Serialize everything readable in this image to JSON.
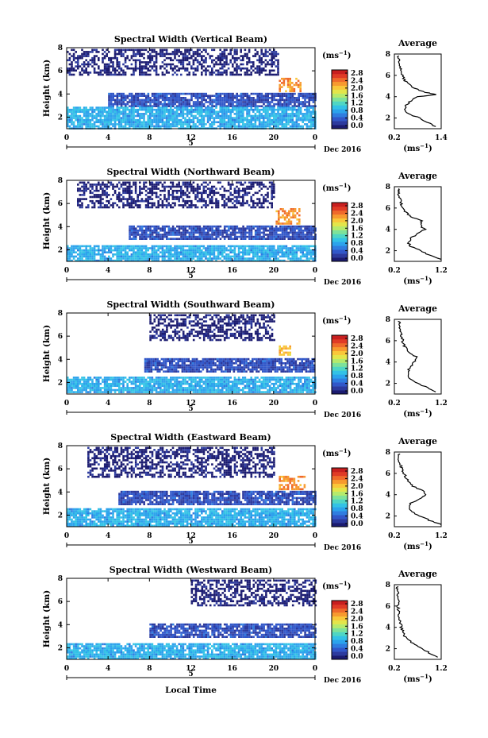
{
  "colormap": [
    "#1b1b70",
    "#2c3a9e",
    "#3157c9",
    "#2f7de0",
    "#2ca3ec",
    "#33c2e6",
    "#4fd6c4",
    "#7ee29a",
    "#b5ea6c",
    "#e3e54a",
    "#f9c73a",
    "#f79a2f",
    "#ef6a2b",
    "#e03b26",
    "#c81f1f"
  ],
  "panels": [
    {
      "title": "Spectral Width (Vertical Beam)",
      "profile_xticks": [
        "0.2",
        "1.4"
      ],
      "profile_xrange": [
        0.2,
        1.4
      ],
      "cbar_ticks": [
        "2.8",
        "2.4",
        "2.0",
        "1.6",
        "1.2",
        "0.8",
        "0.4",
        "0.0"
      ]
    },
    {
      "title": "Spectral Width (Northward Beam)",
      "profile_xticks": [
        "0.2",
        "1.2"
      ],
      "profile_xrange": [
        0.2,
        1.2
      ],
      "cbar_ticks": [
        "2.8",
        "2.4",
        "2.0",
        "1.6",
        "1.2",
        "0.8",
        "0.4",
        "0.0"
      ]
    },
    {
      "title": "Spectral Width (Southward Beam)",
      "profile_xticks": [
        "0.2",
        "1.2"
      ],
      "profile_xrange": [
        0.2,
        1.2
      ],
      "cbar_ticks": [
        "2.8",
        "2.4",
        "2.0",
        "1.6",
        "1.2",
        "0.8",
        "0.4",
        "0.0"
      ]
    },
    {
      "title": "Spectral Width (Eastward Beam)",
      "profile_xticks": [
        "0.2",
        "1.2"
      ],
      "profile_xrange": [
        0.2,
        1.2
      ],
      "cbar_ticks": [
        "2.8",
        "2.4",
        "2.0",
        "1.6",
        "1.2",
        "0.8",
        "0.4",
        "0.0"
      ]
    },
    {
      "title": "Spectral Width (Westward Beam)",
      "profile_xticks": [
        "0.2",
        "1.2"
      ],
      "profile_xrange": [
        0.2,
        1.2
      ],
      "cbar_ticks": [
        "2.8",
        "2.4",
        "2.0",
        "1.6",
        "1.2",
        "0.8",
        "0.4",
        "0.0"
      ]
    }
  ],
  "common": {
    "ylabel": "Height (km)",
    "yticks": [
      "2",
      "4",
      "6",
      "8"
    ],
    "xticks": [
      "0",
      "4",
      "8",
      "12",
      "16",
      "20",
      "0"
    ],
    "date_marker": "5",
    "date_label": "Dec 2016",
    "cbar_unit": "(ms",
    "cbar_unit_sup": "−1",
    "cbar_unit_close": ")",
    "profile_title": "Average",
    "profile_yticks": [
      "2",
      "4",
      "6",
      "8"
    ],
    "xlabel": "Local Time"
  },
  "chart_data": [
    {
      "type": "heatmap",
      "title": "Spectral Width (Vertical Beam)",
      "xlabel": "Local Time",
      "ylabel": "Height (km)",
      "x_range_hours": [
        0,
        24
      ],
      "ylim": [
        1,
        8
      ],
      "z_unit": "ms-1",
      "zlim": [
        0,
        2.8
      ],
      "regions": [
        {
          "name": "upper layer",
          "x": [
            0,
            20.5
          ],
          "y": [
            5.6,
            7.9
          ],
          "level": 0.1
        },
        {
          "name": "mid layer",
          "x": [
            4,
            24
          ],
          "y": [
            2.9,
            4.1
          ],
          "level": 0.4
        },
        {
          "name": "low layer",
          "x": [
            0,
            24
          ],
          "y": [
            1.1,
            2.9
          ],
          "level": 0.9
        },
        {
          "name": "hot spot",
          "x": [
            20.5,
            22.5
          ],
          "y": [
            4.2,
            5.4
          ],
          "level": 2.2
        }
      ],
      "profile": {
        "title": "Average",
        "xlim": [
          0.2,
          1.4
        ],
        "heights": [
          1.2,
          1.6,
          2,
          2.4,
          2.8,
          3.2,
          3.6,
          4,
          4.2,
          4.4,
          4.8,
          5.2,
          5.6,
          6,
          6.4,
          6.8,
          7.2,
          7.6,
          7.9
        ],
        "values": [
          1.25,
          1.05,
          0.85,
          0.55,
          0.48,
          0.5,
          0.62,
          0.8,
          1.3,
          1.0,
          0.7,
          0.55,
          0.45,
          0.4,
          0.38,
          0.35,
          0.33,
          0.3,
          0.3
        ]
      }
    },
    {
      "type": "heatmap",
      "title": "Spectral Width (Northward Beam)",
      "xlabel": "Local Time",
      "ylabel": "Height (km)",
      "x_range_hours": [
        0,
        24
      ],
      "ylim": [
        1,
        8
      ],
      "z_unit": "ms-1",
      "zlim": [
        0,
        2.8
      ],
      "regions": [
        {
          "name": "upper layer",
          "x": [
            1,
            20
          ],
          "y": [
            5.6,
            7.9
          ],
          "level": 0.1
        },
        {
          "name": "mid layer",
          "x": [
            6,
            24
          ],
          "y": [
            2.9,
            4.1
          ],
          "level": 0.4
        },
        {
          "name": "low layer",
          "x": [
            0,
            24
          ],
          "y": [
            1.1,
            2.4
          ],
          "level": 0.9
        },
        {
          "name": "hot spot",
          "x": [
            20.2,
            22.5
          ],
          "y": [
            4.2,
            5.6
          ],
          "level": 2.2
        }
      ],
      "profile": {
        "title": "Average",
        "xlim": [
          0.2,
          1.2
        ],
        "heights": [
          1.2,
          1.6,
          2,
          2.4,
          2.8,
          3.2,
          3.6,
          4,
          4.4,
          4.8,
          5.2,
          5.6,
          6,
          6.4,
          6.8,
          7.2,
          7.6,
          7.9
        ],
        "values": [
          1.2,
          0.95,
          0.75,
          0.55,
          0.5,
          0.55,
          0.7,
          0.85,
          0.75,
          0.8,
          0.55,
          0.45,
          0.38,
          0.35,
          0.33,
          0.3,
          0.3,
          0.3
        ]
      }
    },
    {
      "type": "heatmap",
      "title": "Spectral Width (Southward Beam)",
      "xlabel": "Local Time",
      "ylabel": "Height (km)",
      "x_range_hours": [
        0,
        24
      ],
      "ylim": [
        1,
        8
      ],
      "z_unit": "ms-1",
      "zlim": [
        0,
        2.8
      ],
      "regions": [
        {
          "name": "upper layer",
          "x": [
            8,
            20
          ],
          "y": [
            5.6,
            7.9
          ],
          "level": 0.1
        },
        {
          "name": "mid layer",
          "x": [
            7.5,
            24
          ],
          "y": [
            2.9,
            4.1
          ],
          "level": 0.4
        },
        {
          "name": "low layer",
          "x": [
            0,
            24
          ],
          "y": [
            1.1,
            2.5
          ],
          "level": 0.9
        },
        {
          "name": "hot spot",
          "x": [
            20.5,
            21.5
          ],
          "y": [
            4.4,
            5.2
          ],
          "level": 2.0
        }
      ],
      "profile": {
        "title": "Average",
        "xlim": [
          0.2,
          1.2
        ],
        "heights": [
          1.2,
          1.6,
          2,
          2.4,
          2.8,
          3.2,
          3.6,
          4,
          4.4,
          4.8,
          5.2,
          5.6,
          6,
          6.4,
          6.8,
          7.2,
          7.6,
          7.9
        ],
        "values": [
          1.1,
          0.9,
          0.7,
          0.55,
          0.5,
          0.5,
          0.55,
          0.6,
          0.7,
          0.55,
          0.45,
          0.4,
          0.38,
          0.35,
          0.33,
          0.3,
          0.3,
          0.3
        ]
      }
    },
    {
      "type": "heatmap",
      "title": "Spectral Width (Eastward Beam)",
      "xlabel": "Local Time",
      "ylabel": "Height (km)",
      "x_range_hours": [
        0,
        24
      ],
      "ylim": [
        1,
        8
      ],
      "z_unit": "ms-1",
      "zlim": [
        0,
        2.8
      ],
      "regions": [
        {
          "name": "upper layer",
          "x": [
            2,
            20
          ],
          "y": [
            5.4,
            7.9
          ],
          "level": 0.1
        },
        {
          "name": "mid layer",
          "x": [
            5,
            24
          ],
          "y": [
            2.9,
            4.1
          ],
          "level": 0.4
        },
        {
          "name": "low layer",
          "x": [
            0,
            24
          ],
          "y": [
            1.1,
            2.6
          ],
          "level": 0.9
        },
        {
          "name": "hot spot",
          "x": [
            20.5,
            23
          ],
          "y": [
            4.2,
            5.4
          ],
          "level": 2.2
        }
      ],
      "profile": {
        "title": "Average",
        "xlim": [
          0.2,
          1.2
        ],
        "heights": [
          1.2,
          1.6,
          2,
          2.4,
          2.8,
          3.2,
          3.6,
          4,
          4.4,
          4.8,
          5.2,
          5.6,
          6,
          6.4,
          6.8,
          7.2,
          7.6,
          7.9
        ],
        "values": [
          1.2,
          0.95,
          0.75,
          0.55,
          0.5,
          0.55,
          0.75,
          0.9,
          0.8,
          0.6,
          0.5,
          0.45,
          0.4,
          0.36,
          0.33,
          0.3,
          0.3,
          0.3
        ]
      }
    },
    {
      "type": "heatmap",
      "title": "Spectral Width (Westward Beam)",
      "xlabel": "Local Time",
      "ylabel": "Height (km)",
      "x_range_hours": [
        0,
        24
      ],
      "ylim": [
        1,
        8
      ],
      "z_unit": "ms-1",
      "zlim": [
        0,
        2.8
      ],
      "regions": [
        {
          "name": "upper layer",
          "x": [
            12,
            24
          ],
          "y": [
            5.6,
            7.9
          ],
          "level": 0.1
        },
        {
          "name": "mid layer",
          "x": [
            8,
            24
          ],
          "y": [
            2.9,
            4.1
          ],
          "level": 0.4
        },
        {
          "name": "low layer",
          "x": [
            0,
            24
          ],
          "y": [
            1.1,
            2.4
          ],
          "level": 0.9
        }
      ],
      "profile": {
        "title": "Average",
        "xlim": [
          0.2,
          1.2
        ],
        "heights": [
          1.2,
          1.6,
          2,
          2.4,
          2.8,
          3.2,
          3.6,
          4,
          4.4,
          4.8,
          5.2,
          5.6,
          6,
          6.4,
          6.8,
          7.2,
          7.6,
          7.9
        ],
        "values": [
          1.1,
          0.95,
          0.8,
          0.65,
          0.5,
          0.42,
          0.38,
          0.35,
          0.33,
          0.3,
          0.3,
          0.29,
          0.28,
          0.28,
          0.27,
          0.27,
          0.26,
          0.26
        ]
      }
    }
  ]
}
